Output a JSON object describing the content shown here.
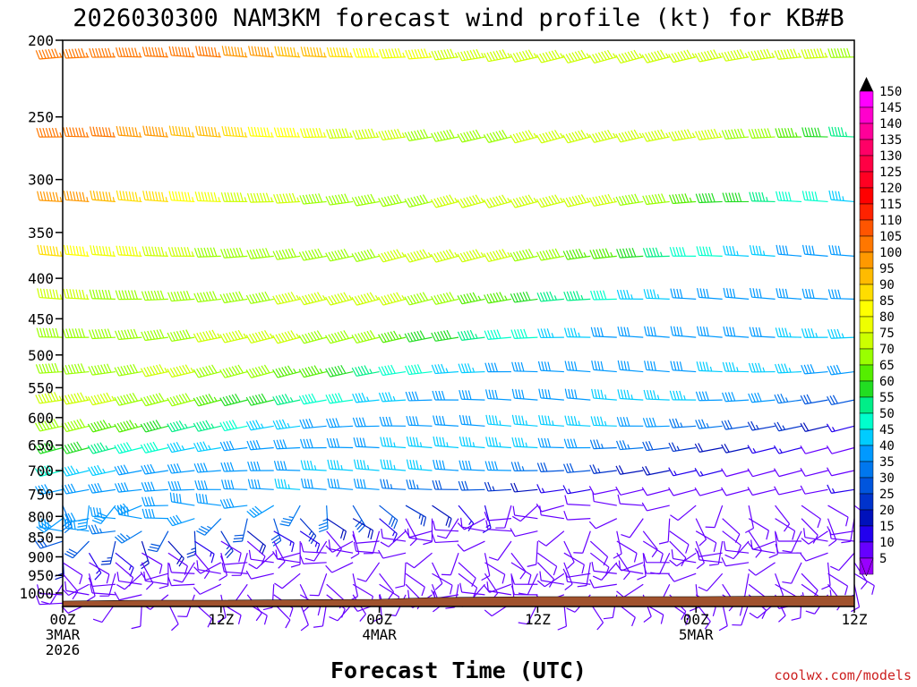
{
  "chart_data": {
    "type": "wind-profile",
    "title": "2026030300 NAM3KM forecast wind profile (kt) for KB#B",
    "xlabel": "Forecast Time (UTC)",
    "ylabel": "",
    "credit": "coolwx.com/models",
    "pressure_levels": [
      200,
      250,
      300,
      350,
      400,
      450,
      500,
      550,
      600,
      650,
      700,
      750,
      800,
      850,
      900,
      950,
      1000
    ],
    "y_tick_labels": [
      "200",
      "250",
      "300",
      "350",
      "400",
      "450",
      "500",
      "550",
      "600",
      "650",
      "700",
      "750",
      "800",
      "850",
      "900",
      "950",
      "1000"
    ],
    "ylim": [
      200,
      1040
    ],
    "x_ticks": [
      {
        "hour": 0,
        "labels": [
          "00Z",
          "3MAR",
          "2026"
        ]
      },
      {
        "hour": 12,
        "labels": [
          "12Z"
        ]
      },
      {
        "hour": 24,
        "labels": [
          "00Z",
          "4MAR"
        ]
      },
      {
        "hour": 36,
        "labels": [
          "12Z"
        ]
      },
      {
        "hour": 48,
        "labels": [
          "00Z",
          "5MAR"
        ]
      },
      {
        "hour": 60,
        "labels": [
          "12Z"
        ]
      }
    ],
    "xlim": [
      0,
      60
    ],
    "time_step_hours": 2,
    "wind_levels": [
      210,
      265,
      320,
      375,
      425,
      475,
      525,
      570,
      615,
      655,
      700,
      740,
      775,
      805,
      835,
      860,
      890,
      915,
      945,
      975,
      1005,
      1030
    ],
    "colorbar": {
      "labels": [
        "150",
        "145",
        "140",
        "135",
        "130",
        "125",
        "120",
        "115",
        "110",
        "105",
        "100",
        "95",
        "90",
        "85",
        "80",
        "75",
        "70",
        "65",
        "60",
        "55",
        "50",
        "45",
        "40",
        "35",
        "30",
        "25",
        "20",
        "15",
        "10",
        "5"
      ],
      "colors": [
        "#ff00ff",
        "#ff00cc",
        "#ff0099",
        "#ff0066",
        "#ff0044",
        "#ff0022",
        "#ff0000",
        "#ff2200",
        "#ff5500",
        "#ff7700",
        "#ff9900",
        "#ffbb00",
        "#ffdd00",
        "#ffff00",
        "#eeff00",
        "#ccff00",
        "#99ff00",
        "#55ee00",
        "#22dd22",
        "#00ee88",
        "#00ffcc",
        "#00ccff",
        "#0099ff",
        "#0077ee",
        "#0055dd",
        "#0033cc",
        "#0011bb",
        "#2200ee",
        "#6600ff",
        "#9900ff"
      ]
    },
    "terrain_color": "#a0522d",
    "grid": false
  }
}
